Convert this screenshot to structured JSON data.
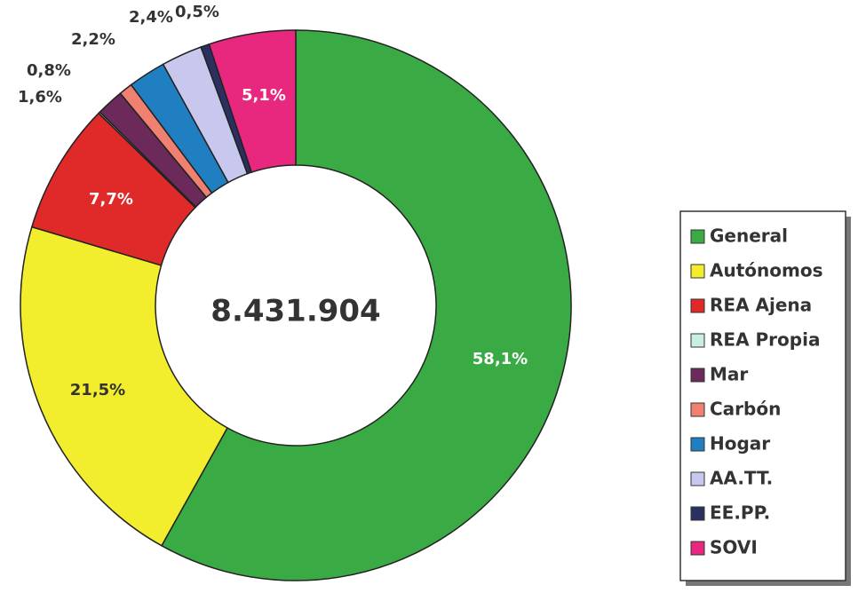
{
  "chart_data": {
    "type": "donut",
    "center_label": "8.431.904",
    "categories": [
      "General",
      "Autónomos",
      "REA Ajena",
      "REA  Propia",
      "Mar",
      "Carbón",
      "Hogar",
      "AA.TT.",
      "EE.PP.",
      "SOVI"
    ],
    "values": [
      58.1,
      21.5,
      7.7,
      0.1,
      1.6,
      0.8,
      2.2,
      2.4,
      0.5,
      5.1
    ],
    "value_labels": [
      "58,1%",
      "21,5%",
      "7,7%",
      null,
      "1,6%",
      "0,8%",
      "2,2%",
      "2,4%",
      "0,5%",
      "5,1%"
    ],
    "colors": [
      "#3aaa45",
      "#f2ee2e",
      "#e02a2a",
      "#c8f0e0",
      "#6b2a5a",
      "#f08070",
      "#1f7fc0",
      "#c8c8ee",
      "#2a3060",
      "#e8287e"
    ],
    "legend": "right"
  }
}
